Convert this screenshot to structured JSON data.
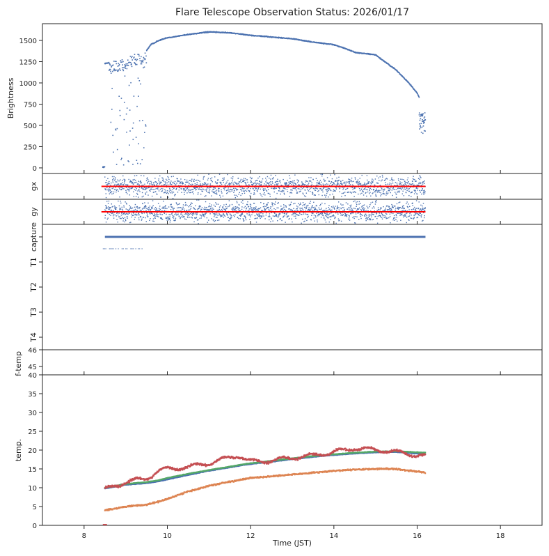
{
  "chart_data": [
    {
      "type": "scatter",
      "title": "Flare Telescope Observation Status: 2026/01/17",
      "ylabel": "Brightness",
      "ylim": [
        -66,
        1697
      ],
      "yticks": [
        0,
        250,
        500,
        750,
        1000,
        1250,
        1500
      ],
      "xlim": [
        7,
        19
      ],
      "color": "#4c72b0",
      "series": [
        {
          "name": "brightness",
          "x": [
            8.45,
            8.5,
            8.55,
            8.6,
            9.5,
            9.6,
            9.8,
            10,
            10.5,
            11,
            11.5,
            12,
            12.5,
            13,
            13.5,
            14,
            14.3,
            14.5,
            15,
            15.5,
            15.8,
            16,
            16.05
          ],
          "y": [
            0,
            1230,
            1230,
            1240,
            1380,
            1450,
            1500,
            1530,
            1570,
            1600,
            1590,
            1560,
            1540,
            1520,
            1480,
            1450,
            1400,
            1360,
            1330,
            1150,
            1000,
            880,
            830
          ]
        }
      ],
      "cloudy_interval": [
        8.6,
        9.5
      ],
      "scatter_interval": [
        16.05,
        16.2
      ],
      "scatter_range": [
        400,
        650
      ]
    },
    {
      "type": "scatter",
      "ylabel": "gx",
      "ylim": [
        -1,
        1
      ],
      "reference_line": 0,
      "reference_color": "#ff0000",
      "x_range": [
        8.5,
        16.2
      ],
      "color": "#4c72b0"
    },
    {
      "type": "scatter",
      "ylabel": "gy",
      "ylim": [
        -1,
        1
      ],
      "reference_line": 0,
      "reference_color": "#ff0000",
      "x_range": [
        8.5,
        16.2
      ],
      "color": "#4c72b0"
    },
    {
      "type": "scatter",
      "categories": [
        "capture",
        "T1",
        "T2",
        "T3",
        "T4"
      ],
      "segments": [
        {
          "category": "capture",
          "x": [
            8.5,
            16.2
          ]
        },
        {
          "category": "capture-T1",
          "x": [
            8.45,
            9.45
          ]
        }
      ],
      "color": "#4c72b0"
    },
    {
      "type": "scatter",
      "ylabel": "f-temp",
      "yticks": [
        45,
        46
      ],
      "ylim": [
        44.5,
        46
      ]
    },
    {
      "type": "scatter",
      "ylabel": "temp.",
      "xlabel": "Time (JST)",
      "ylim": [
        0,
        40
      ],
      "yticks": [
        0,
        5,
        10,
        15,
        20,
        25,
        30,
        35,
        40
      ],
      "xlim": [
        7,
        19
      ],
      "xticks": [
        8,
        10,
        12,
        14,
        16,
        18
      ],
      "x": [
        8.5,
        9,
        9.5,
        9.8,
        10,
        10.5,
        11,
        11.5,
        11.7,
        12,
        12.5,
        13,
        13.5,
        14,
        14.5,
        15,
        15.5,
        16.2
      ],
      "series": [
        {
          "name": "T1",
          "color": "#4c72b0",
          "values": [
            9.8,
            10.8,
            11.2,
            11.7,
            12.2,
            13.4,
            14.5,
            15.4,
            15.8,
            16.3,
            16.9,
            17.6,
            18.2,
            18.7,
            19.1,
            19.4,
            19.5,
            18.9
          ]
        },
        {
          "name": "T2",
          "color": "#dd8452",
          "values": [
            4,
            5,
            5.5,
            6.3,
            7,
            9,
            10.5,
            11.6,
            12,
            12.6,
            13,
            13.5,
            14,
            14.5,
            14.8,
            15,
            15,
            14
          ]
        },
        {
          "name": "T3",
          "color": "#55a868",
          "values": [
            10,
            11,
            11.5,
            12,
            12.6,
            13.7,
            14.7,
            15.6,
            16,
            16.5,
            17.1,
            17.8,
            18.4,
            18.9,
            19.3,
            19.6,
            19.7,
            19.3
          ]
        },
        {
          "name": "T4",
          "color": "#c44e52",
          "values": [
            9.5,
            11.5,
            12.5,
            14.5,
            15,
            15.5,
            16.5,
            18,
            18.5,
            17,
            17.2,
            18,
            18.6,
            19.5,
            20.5,
            20.1,
            19.5,
            18.3
          ]
        }
      ]
    }
  ]
}
